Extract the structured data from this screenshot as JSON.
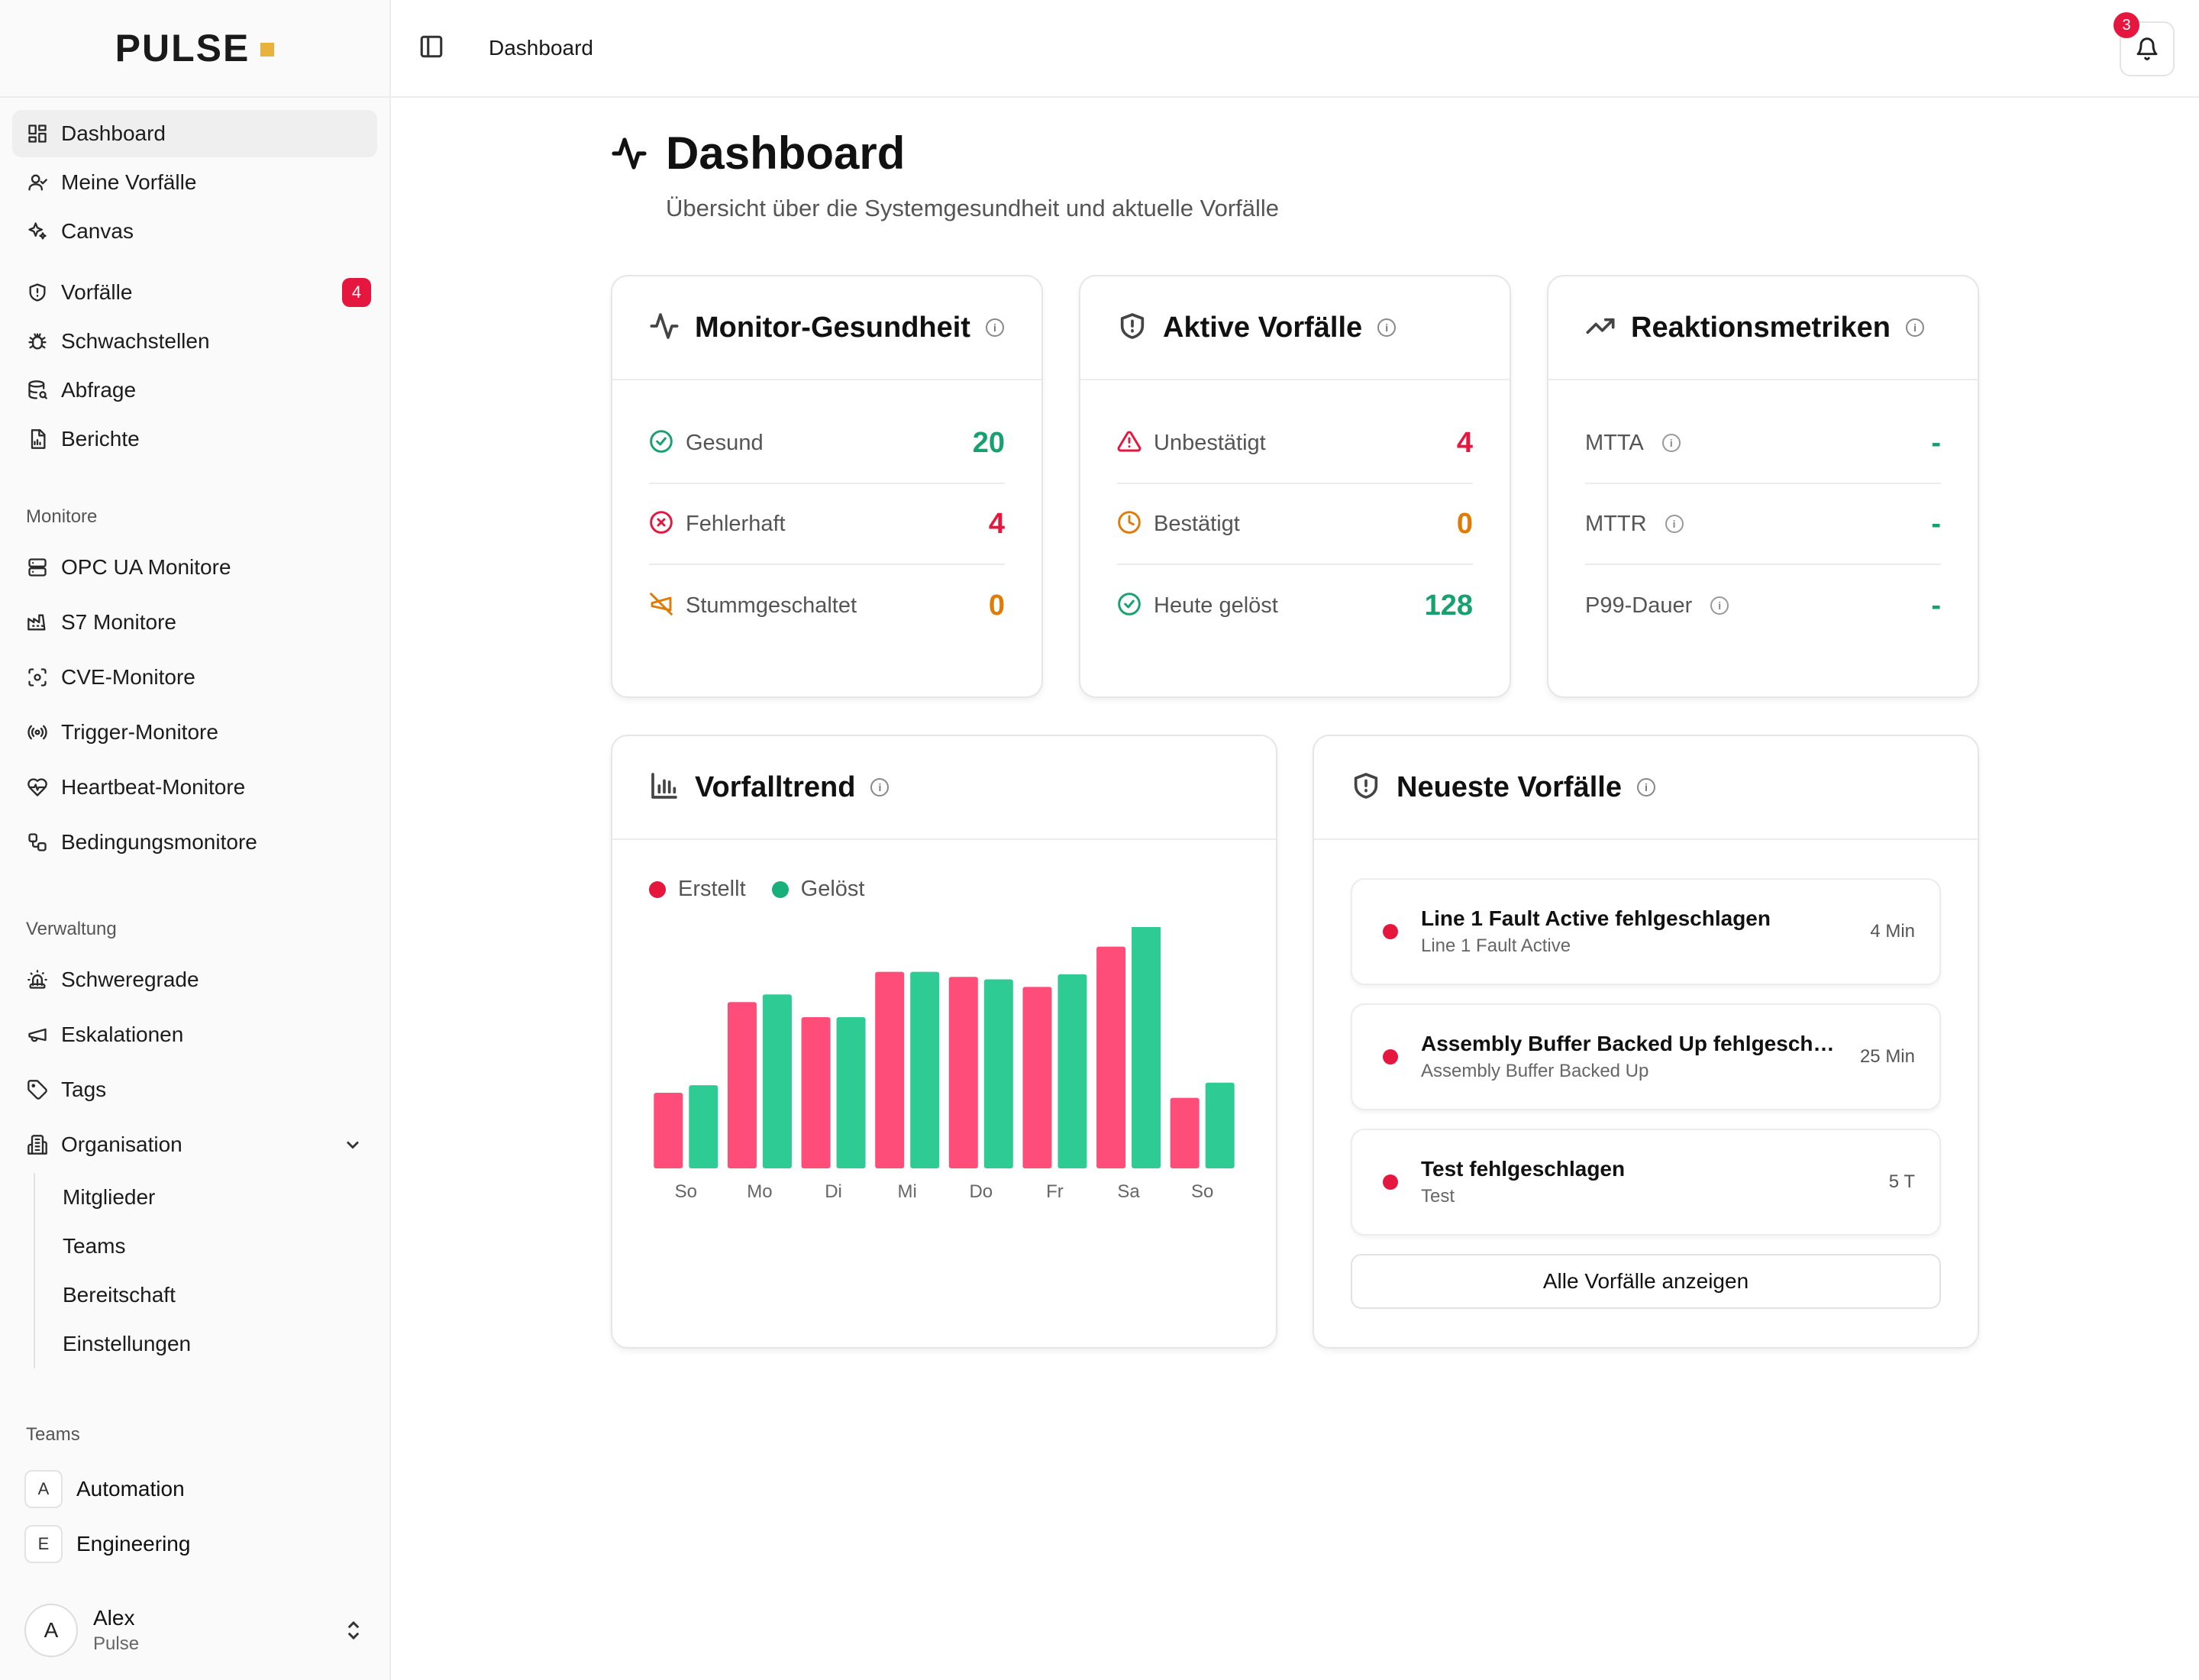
{
  "brand": {
    "name": "PULSE"
  },
  "sidebar": {
    "items": [
      {
        "label": "Dashboard",
        "icon": "dashboard-icon",
        "active": true
      },
      {
        "label": "Meine Vorfälle",
        "icon": "user-icon"
      },
      {
        "label": "Canvas",
        "icon": "sparkles-icon"
      },
      {
        "label": "Vorfälle",
        "icon": "shield-icon",
        "badge": "4"
      },
      {
        "label": "Schwachstellen",
        "icon": "bug-icon"
      },
      {
        "label": "Abfrage",
        "icon": "database-search-icon"
      },
      {
        "label": "Berichte",
        "icon": "report-icon"
      }
    ],
    "monitors_label": "Monitore",
    "monitors": [
      {
        "label": "OPC UA Monitore",
        "icon": "server-icon"
      },
      {
        "label": "S7 Monitore",
        "icon": "factory-icon"
      },
      {
        "label": "CVE-Monitore",
        "icon": "scan-icon"
      },
      {
        "label": "Trigger-Monitore",
        "icon": "radio-icon"
      },
      {
        "label": "Heartbeat-Monitore",
        "icon": "heart-pulse-icon"
      },
      {
        "label": "Bedingungsmonitore",
        "icon": "workflow-icon"
      }
    ],
    "admin_label": "Verwaltung",
    "admin": [
      {
        "label": "Schweregrade",
        "icon": "siren-icon"
      },
      {
        "label": "Eskalationen",
        "icon": "megaphone-icon"
      },
      {
        "label": "Tags",
        "icon": "tag-icon"
      },
      {
        "label": "Organisation",
        "icon": "building-icon"
      }
    ],
    "org_sub": [
      "Mitglieder",
      "Teams",
      "Bereitschaft",
      "Einstellungen"
    ],
    "teams_label": "Teams",
    "teams": [
      {
        "letter": "A",
        "label": "Automation"
      },
      {
        "letter": "E",
        "label": "Engineering"
      }
    ],
    "user": {
      "initial": "A",
      "name": "Alex",
      "org": "Pulse"
    }
  },
  "header": {
    "breadcrumb": "Dashboard",
    "notifications": "3"
  },
  "page": {
    "title": "Dashboard",
    "subtitle": "Übersicht über die Systemgesundheit und aktuelle Vorfälle"
  },
  "monitor_health": {
    "title": "Monitor-Gesundheit",
    "rows": [
      {
        "label": "Gesund",
        "value": "20"
      },
      {
        "label": "Fehlerhaft",
        "value": "4"
      },
      {
        "label": "Stummgeschaltet",
        "value": "0"
      }
    ]
  },
  "active_incidents": {
    "title": "Aktive Vorfälle",
    "rows": [
      {
        "label": "Unbestätigt",
        "value": "4"
      },
      {
        "label": "Bestätigt",
        "value": "0"
      },
      {
        "label": "Heute gelöst",
        "value": "128"
      }
    ]
  },
  "response_metrics": {
    "title": "Reaktionsmetriken",
    "rows": [
      {
        "label": "MTTA",
        "value": "-"
      },
      {
        "label": "MTTR",
        "value": "-"
      },
      {
        "label": "P99-Dauer",
        "value": "-"
      }
    ]
  },
  "trend": {
    "title": "Vorfalltrend",
    "legend_created": "Erstellt",
    "legend_resolved": "Gelöst"
  },
  "chart_data": {
    "type": "bar",
    "categories": [
      "So",
      "Mo",
      "Di",
      "Mi",
      "Do",
      "Fr",
      "Sa",
      "So"
    ],
    "series": [
      {
        "name": "Erstellt",
        "color": "#ff4d7a",
        "values": [
          30,
          66,
          60,
          78,
          76,
          72,
          88,
          28
        ]
      },
      {
        "name": "Gelöst",
        "color": "#2ecb94",
        "values": [
          33,
          69,
          60,
          78,
          75,
          77,
          99,
          34
        ]
      }
    ],
    "ylim": [
      0,
      100
    ],
    "grid": false,
    "legend": "top-left"
  },
  "recent": {
    "title": "Neueste Vorfälle",
    "items": [
      {
        "title": "Line 1 Fault Active fehlgeschlagen",
        "sub": "Line 1 Fault Active",
        "time": "4 Min"
      },
      {
        "title": "Assembly Buffer Backed Up fehlgeschlagen",
        "sub": "Assembly Buffer Backed Up",
        "time": "25 Min"
      },
      {
        "title": "Test fehlgeschlagen",
        "sub": "Test",
        "time": "5 T"
      }
    ],
    "all_button": "Alle Vorfälle anzeigen"
  }
}
